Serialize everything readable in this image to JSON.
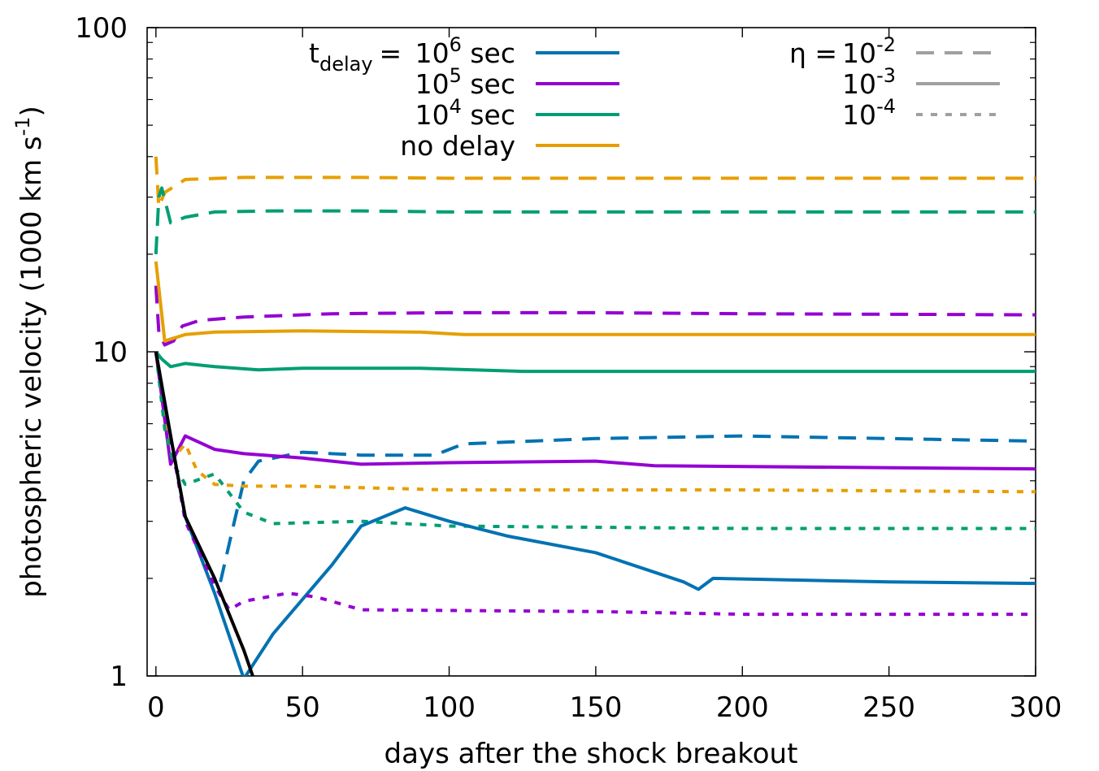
{
  "chart_data": {
    "type": "line",
    "xlabel": "days after the shock breakout",
    "ylabel_parts": {
      "main": "photospheric velocity (1000 km s",
      "exp": "-1",
      "close": ")"
    },
    "y_scale": "log",
    "xlim": [
      -3,
      300
    ],
    "ylim": [
      1,
      100
    ],
    "x_ticks": [
      0,
      50,
      100,
      150,
      200,
      250,
      300
    ],
    "x_tick_labels": [
      "0",
      "50",
      "100",
      "150",
      "200",
      "250",
      "300"
    ],
    "y_ticks": [
      1,
      10,
      100
    ],
    "y_tick_labels": [
      "1",
      "10",
      "100"
    ],
    "legend_color": {
      "title_base": "t",
      "title_sub": "delay",
      "title_eq": "=",
      "entries": [
        {
          "base": "10",
          "exp": "6",
          "suffix": " sec",
          "color": "#0072B2"
        },
        {
          "base": "10",
          "exp": "5",
          "suffix": " sec",
          "color": "#9400D3"
        },
        {
          "base": "10",
          "exp": "4",
          "suffix": " sec",
          "color": "#009E73"
        },
        {
          "base": "no delay",
          "exp": "",
          "suffix": "",
          "color": "#E69F00"
        }
      ]
    },
    "legend_style": {
      "title": "η =",
      "color": "#A0A0A0",
      "entries": [
        {
          "base": "10",
          "exp": "-2",
          "dash": "dashed"
        },
        {
          "base": "10",
          "exp": "-3",
          "dash": "solid"
        },
        {
          "base": "10",
          "exp": "-4",
          "dash": "dotted"
        }
      ]
    },
    "series": [
      {
        "color": "#E69F00",
        "dash": "dashed",
        "x": [
          0,
          1,
          3,
          10,
          30,
          50,
          70,
          100,
          200,
          300
        ],
        "y": [
          40,
          28,
          31,
          34,
          34.5,
          34.5,
          34.5,
          34.3,
          34.3,
          34.3
        ]
      },
      {
        "color": "#009E73",
        "dash": "dashed",
        "x": [
          0,
          1,
          2,
          5,
          10,
          20,
          40,
          70,
          100,
          200,
          300
        ],
        "y": [
          20,
          30,
          32,
          25,
          26,
          27,
          27.2,
          27.2,
          27,
          27,
          27
        ]
      },
      {
        "color": "#9400D3",
        "dash": "dashed",
        "x": [
          0,
          1,
          3,
          6,
          9,
          15,
          30,
          60,
          100,
          150,
          200,
          300
        ],
        "y": [
          16,
          11.5,
          10.5,
          10.8,
          12,
          12.5,
          12.8,
          13.1,
          13.2,
          13.2,
          13.1,
          13.0
        ]
      },
      {
        "color": "#E69F00",
        "dash": "solid",
        "x": [
          0,
          3,
          10,
          20,
          50,
          90,
          105,
          200,
          300
        ],
        "y": [
          19,
          10.8,
          11.3,
          11.5,
          11.6,
          11.5,
          11.3,
          11.3,
          11.3
        ]
      },
      {
        "color": "#009E73",
        "dash": "solid",
        "x": [
          0,
          2,
          5,
          10,
          20,
          35,
          50,
          90,
          125,
          200,
          300
        ],
        "y": [
          10,
          9.5,
          9.0,
          9.2,
          9.0,
          8.8,
          8.9,
          8.9,
          8.7,
          8.7,
          8.7
        ]
      },
      {
        "color": "#0072B2",
        "dash": "dashed",
        "x": [
          22,
          26,
          30,
          35,
          50,
          70,
          95,
          105,
          150,
          200,
          250,
          300
        ],
        "y": [
          1.95,
          2.8,
          4.0,
          4.6,
          4.9,
          4.8,
          4.8,
          5.2,
          5.4,
          5.5,
          5.4,
          5.3
        ]
      },
      {
        "color": "#9400D3",
        "dash": "solid",
        "x": [
          0,
          3,
          5,
          10,
          20,
          30,
          50,
          70,
          100,
          150,
          170,
          300
        ],
        "y": [
          10,
          6.2,
          4.5,
          5.5,
          5.0,
          4.85,
          4.7,
          4.5,
          4.55,
          4.6,
          4.45,
          4.35
        ]
      },
      {
        "color": "#E69F00",
        "dash": "dotted",
        "x": [
          0,
          3,
          6,
          10,
          14,
          20,
          30,
          50,
          100,
          200,
          300
        ],
        "y": [
          10,
          6.0,
          4.7,
          5.2,
          4.3,
          3.9,
          3.85,
          3.85,
          3.75,
          3.75,
          3.7
        ]
      },
      {
        "color": "#009E73",
        "dash": "dotted",
        "x": [
          0,
          3,
          6,
          10,
          20,
          30,
          40,
          70,
          100,
          200,
          300
        ],
        "y": [
          10,
          5.8,
          4.5,
          3.9,
          4.2,
          3.2,
          2.95,
          3.0,
          2.9,
          2.85,
          2.85
        ]
      },
      {
        "color": "#0072B2",
        "dash": "solid",
        "x": [
          0,
          5,
          10,
          20,
          30,
          40,
          60,
          70,
          85,
          100,
          120,
          150,
          180,
          185,
          190,
          250,
          300
        ],
        "y": [
          10,
          5.5,
          3.1,
          1.8,
          0.98,
          1.35,
          2.2,
          2.9,
          3.3,
          3.0,
          2.7,
          2.4,
          1.95,
          1.85,
          2.0,
          1.95,
          1.93
        ]
      },
      {
        "color": "#9400D3",
        "dash": "dotted",
        "x": [
          0,
          10,
          20,
          25,
          30,
          45,
          55,
          70,
          150,
          200,
          300
        ],
        "y": [
          10,
          3.0,
          1.9,
          1.6,
          1.7,
          1.8,
          1.75,
          1.6,
          1.58,
          1.55,
          1.55
        ]
      },
      {
        "color": "#000000",
        "dash": "solid",
        "x": [
          0,
          5,
          10,
          20,
          30,
          33
        ],
        "y": [
          10,
          5.5,
          3.1,
          2.0,
          1.2,
          1.0
        ]
      }
    ]
  }
}
